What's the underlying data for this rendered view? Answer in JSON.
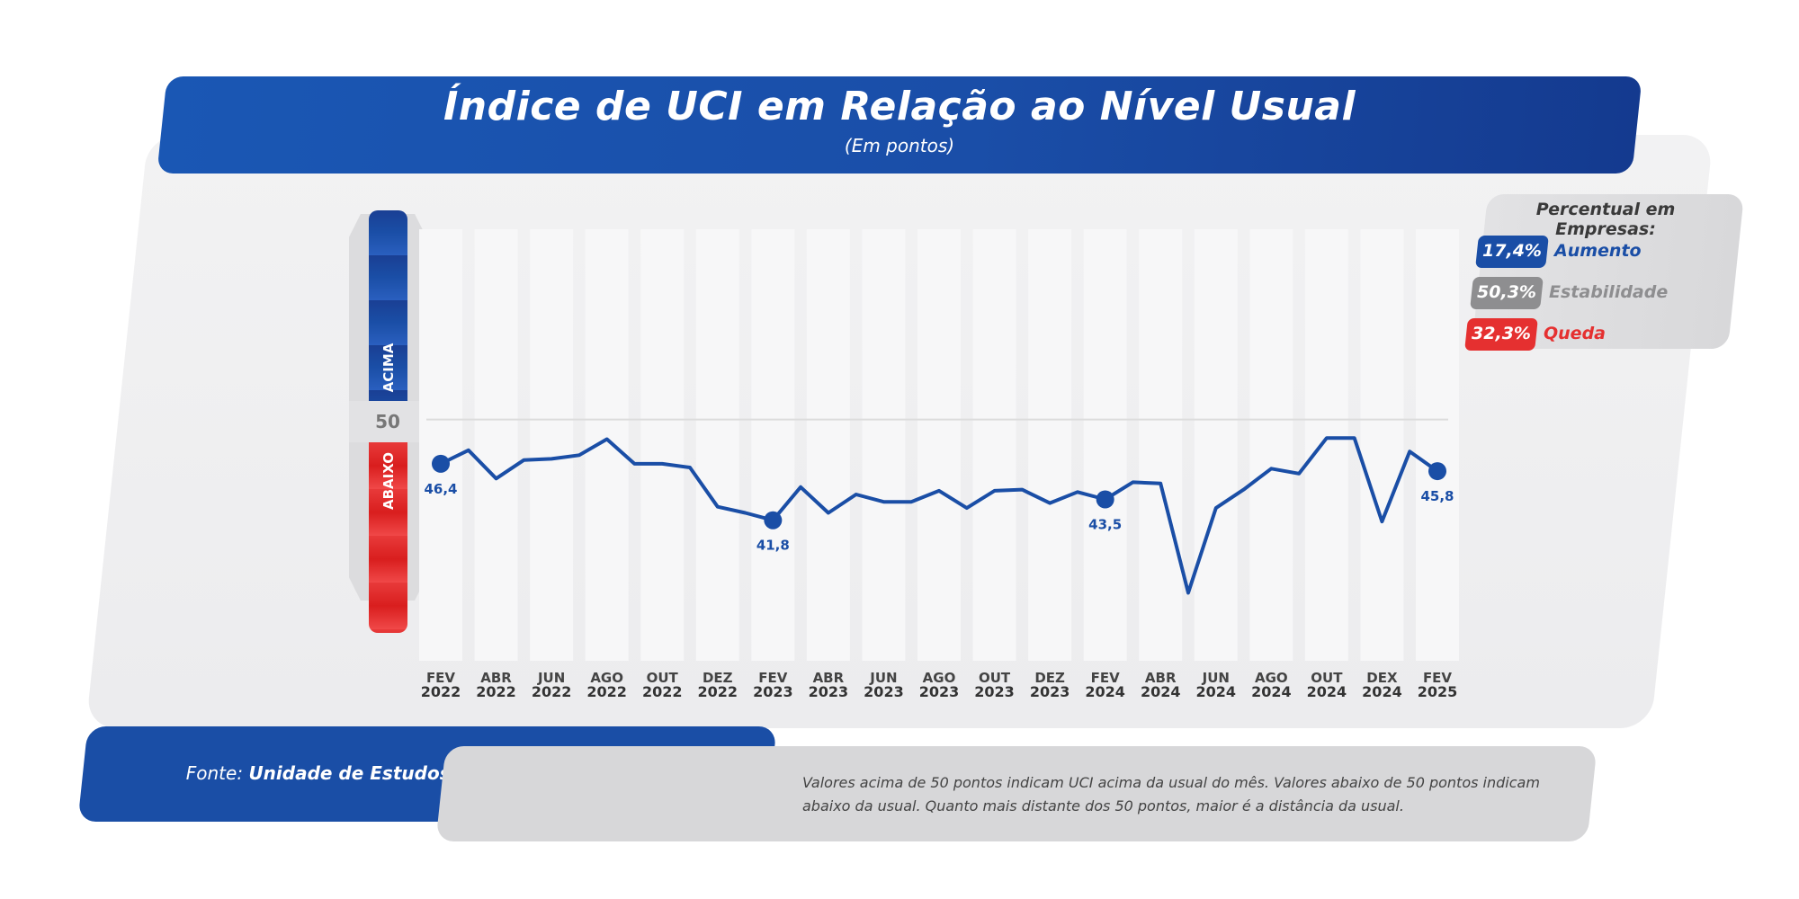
{
  "header": {
    "title": "Índice de UCI em Relação ao Nível Usual",
    "subtitle": "(Em pontos)"
  },
  "legend": {
    "title": "Percentual em Empresas:",
    "items": [
      {
        "value": "17,4%",
        "label": "Aumento",
        "color": "#1a4ea6"
      },
      {
        "value": "50,3%",
        "label": "Estabilidade",
        "color": "#8e8e90"
      },
      {
        "value": "32,3%",
        "label": "Queda",
        "color": "#e53030"
      }
    ]
  },
  "gauge": {
    "above_label": "ACIMA",
    "below_label": "ABAIXO",
    "mid_value": "50"
  },
  "footer": {
    "source_prefix": "Fonte:",
    "source_name": "Unidade de Estudos Econômicos - FIERGS",
    "note": "Valores acima de 50 pontos indicam UCI acima da usual do mês. Valores abaixo de 50 pontos indicam abaixo da usual. Quanto mais distante dos 50 pontos, maior é a distância da usual."
  },
  "chart_data": {
    "type": "line",
    "title": "Índice de UCI em Relação ao Nível Usual",
    "subtitle": "(Em pontos)",
    "reference_line": 50,
    "ylim": [
      30,
      60
    ],
    "x_tick_labels": [
      [
        "FEV",
        "2022"
      ],
      [
        "ABR",
        "2022"
      ],
      [
        "JUN",
        "2022"
      ],
      [
        "AGO",
        "2022"
      ],
      [
        "OUT",
        "2022"
      ],
      [
        "DEZ",
        "2022"
      ],
      [
        "FEV",
        "2023"
      ],
      [
        "ABR",
        "2023"
      ],
      [
        "JUN",
        "2023"
      ],
      [
        "AGO",
        "2023"
      ],
      [
        "OUT",
        "2023"
      ],
      [
        "DEZ",
        "2023"
      ],
      [
        "FEV",
        "2024"
      ],
      [
        "ABR",
        "2024"
      ],
      [
        "JUN",
        "2024"
      ],
      [
        "AGO",
        "2024"
      ],
      [
        "OUT",
        "2024"
      ],
      [
        "DEX",
        "2024"
      ],
      [
        "FEV",
        "2025"
      ]
    ],
    "series": [
      {
        "color": "#1a4ea6",
        "x": [
          "2022-02",
          "2022-03",
          "2022-04",
          "2022-05",
          "2022-06",
          "2022-07",
          "2022-08",
          "2022-09",
          "2022-10",
          "2022-11",
          "2022-12",
          "2023-01",
          "2023-02",
          "2023-03",
          "2023-04",
          "2023-05",
          "2023-06",
          "2023-07",
          "2023-08",
          "2023-09",
          "2023-10",
          "2023-11",
          "2023-12",
          "2024-01",
          "2024-02",
          "2024-03",
          "2024-04",
          "2024-05",
          "2024-06",
          "2024-07",
          "2024-08",
          "2024-09",
          "2024-10",
          "2024-11",
          "2024-12",
          "2025-01",
          "2025-02"
        ],
        "values": [
          46.4,
          47.5,
          45.2,
          46.7,
          46.8,
          47.1,
          48.4,
          46.4,
          46.4,
          46.1,
          42.9,
          42.4,
          41.8,
          44.5,
          42.4,
          43.9,
          43.3,
          43.3,
          44.2,
          42.8,
          44.2,
          44.3,
          43.2,
          44.1,
          43.5,
          44.9,
          44.8,
          35.9,
          42.8,
          44.3,
          46.0,
          45.6,
          48.5,
          48.5,
          41.7,
          47.4,
          45.8
        ],
        "labeled_points": [
          {
            "index": 0,
            "label": "46,4"
          },
          {
            "index": 12,
            "label": "41,8"
          },
          {
            "index": 24,
            "label": "43,5"
          },
          {
            "index": 36,
            "label": "45,8"
          }
        ]
      }
    ]
  }
}
